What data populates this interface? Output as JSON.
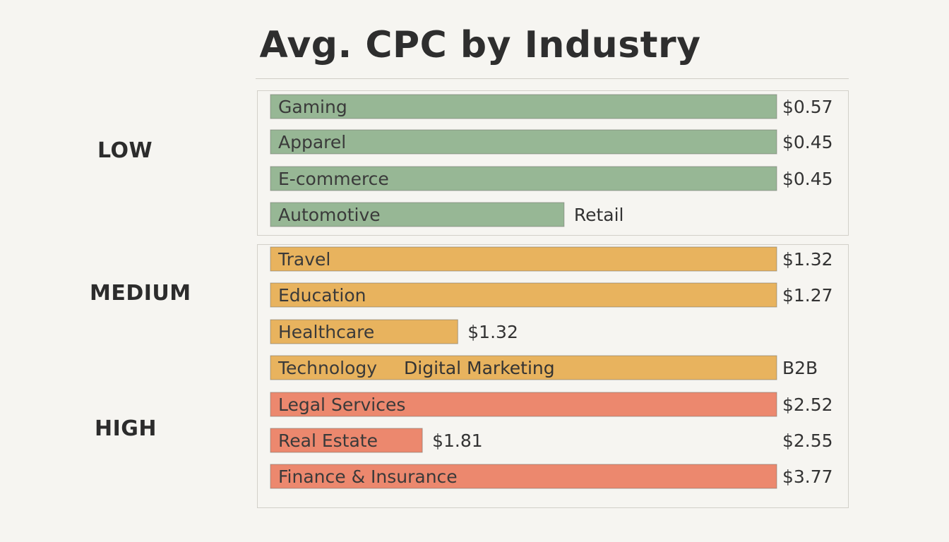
{
  "colors": {
    "low": "#97b795",
    "medium": "#e8b35e",
    "high": "#ec886e",
    "background": "#f6f5f1"
  },
  "chart_data": {
    "type": "bar",
    "title": "Avg. CPC by Industry",
    "groups": [
      {
        "name": "LOW",
        "color": "#97b795"
      },
      {
        "name": "MEDIUM",
        "color": "#e8b35e"
      },
      {
        "name": "HIGH",
        "color": "#ec886e"
      }
    ],
    "bars": [
      {
        "label": "Gaming",
        "group": 0,
        "fill": 1.0,
        "value_text": "$0.57",
        "extra_text": ""
      },
      {
        "label": "Apparel",
        "group": 0,
        "fill": 1.0,
        "value_text": "$0.45",
        "extra_text": ""
      },
      {
        "label": "E-commerce",
        "group": 0,
        "fill": 1.0,
        "value_text": "$0.45",
        "extra_text": ""
      },
      {
        "label": "Automotive",
        "group": 0,
        "fill": 0.58,
        "value_text": "Retail",
        "extra_text": ""
      },
      {
        "label": "Travel",
        "group": 1,
        "fill": 1.0,
        "value_text": "$1.32",
        "extra_text": ""
      },
      {
        "label": "Education",
        "group": 1,
        "fill": 1.0,
        "value_text": "$1.27",
        "extra_text": ""
      },
      {
        "label": "Healthcare",
        "group": 1,
        "fill": 0.37,
        "value_text": "$1.32",
        "extra_text": ""
      },
      {
        "label": "Technology",
        "group": 1,
        "fill": 1.0,
        "value_text": "B2B",
        "extra_text": "Digital Marketing"
      },
      {
        "label": "Legal Services",
        "group": 2,
        "fill": 1.0,
        "value_text": "$2.52",
        "extra_text": ""
      },
      {
        "label": "Real Estate",
        "group": 2,
        "fill": 0.3,
        "value_text": "$1.81",
        "extra_text": "$2.55"
      },
      {
        "label": "Finance & Insurance",
        "group": 2,
        "fill": 1.0,
        "value_text": "$3.77",
        "extra_text": ""
      }
    ]
  }
}
